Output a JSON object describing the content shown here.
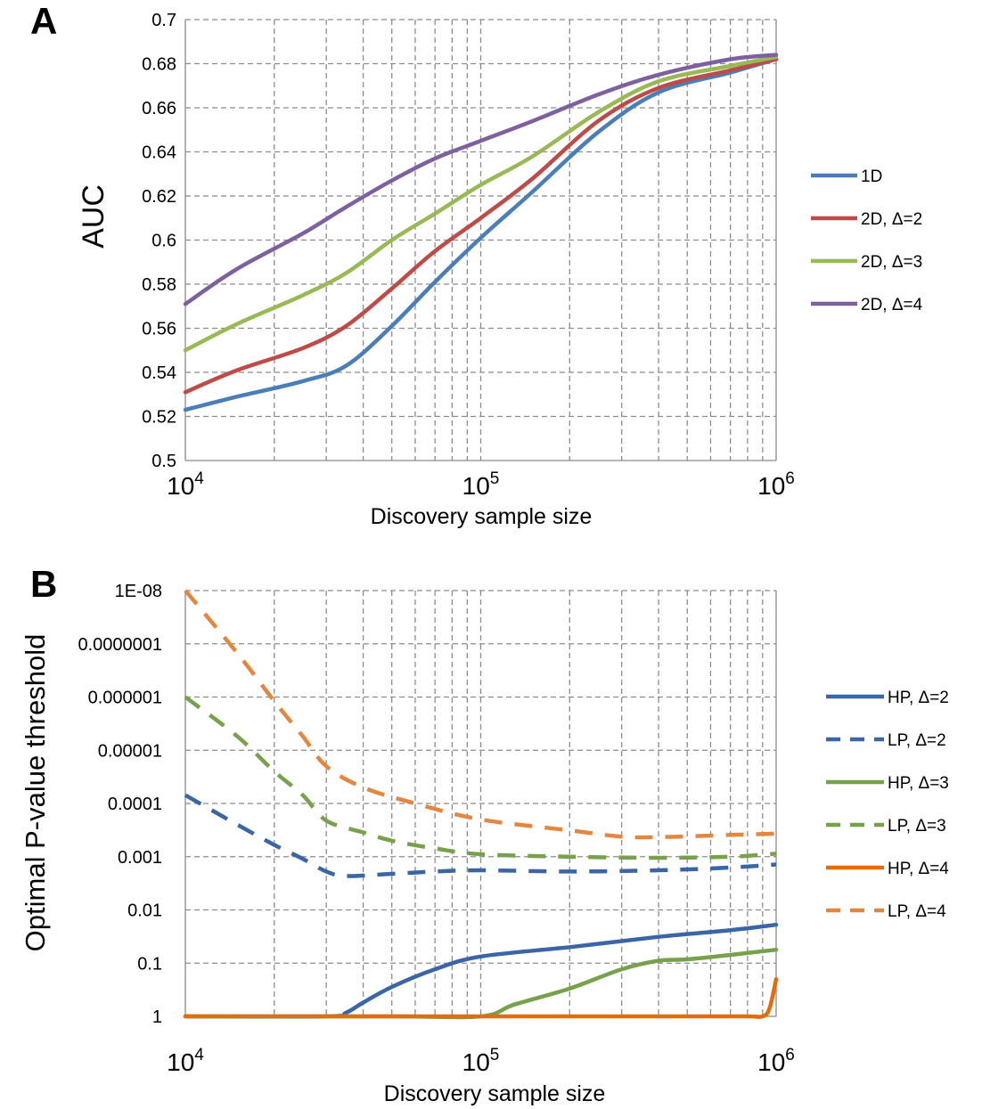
{
  "chart_data": [
    {
      "panel": "A",
      "type": "line",
      "xlabel": "Discovery sample size",
      "ylabel": "AUC",
      "xscale": "log",
      "xlim": [
        10000,
        1000000
      ],
      "ylim": [
        0.5,
        0.7
      ],
      "yticks": [
        "0.5",
        "0.52",
        "0.54",
        "0.56",
        "0.58",
        "0.6",
        "0.62",
        "0.64",
        "0.66",
        "0.68",
        "0.7"
      ],
      "xticks": [
        {
          "base": "10",
          "exp": "4"
        },
        {
          "base": "10",
          "exp": "5"
        },
        {
          "base": "10",
          "exp": "6"
        }
      ],
      "grid": true,
      "legend": "right",
      "x": [
        10000,
        15000,
        25000,
        35000,
        50000,
        70000,
        100000,
        150000,
        250000,
        400000,
        700000,
        1000000
      ],
      "series": [
        {
          "name": "1D",
          "color": "#4a7ebb",
          "dash": false,
          "values": [
            0.523,
            0.529,
            0.536,
            0.543,
            0.561,
            0.581,
            0.601,
            0.622,
            0.649,
            0.667,
            0.676,
            0.682
          ]
        },
        {
          "name": "2D, Δ=2",
          "color": "#be4b48",
          "dash": false,
          "values": [
            0.531,
            0.541,
            0.551,
            0.561,
            0.578,
            0.595,
            0.61,
            0.628,
            0.654,
            0.669,
            0.677,
            0.682
          ]
        },
        {
          "name": "2D, Δ=3",
          "color": "#98b954",
          "dash": false,
          "values": [
            0.55,
            0.562,
            0.575,
            0.585,
            0.6,
            0.612,
            0.625,
            0.638,
            0.658,
            0.672,
            0.679,
            0.683
          ]
        },
        {
          "name": "2D, Δ=4",
          "color": "#7d60a0",
          "dash": false,
          "values": [
            0.571,
            0.587,
            0.603,
            0.615,
            0.627,
            0.637,
            0.645,
            0.654,
            0.666,
            0.675,
            0.682,
            0.684
          ]
        }
      ]
    },
    {
      "panel": "B",
      "type": "line",
      "xlabel": "Discovery sample size",
      "ylabel": "Optimal P-value threshold",
      "xscale": "log",
      "yscale": "log",
      "yaxis_reversed": true,
      "xlim": [
        10000,
        1000000
      ],
      "ylim": [
        1,
        1e-08
      ],
      "yticks": [
        "1E-08",
        "0.0000001",
        "0.000001",
        "0.00001",
        "0.0001",
        "0.001",
        "0.01",
        "0.1",
        "1"
      ],
      "xticks": [
        {
          "base": "10",
          "exp": "4"
        },
        {
          "base": "10",
          "exp": "5"
        },
        {
          "base": "10",
          "exp": "6"
        }
      ],
      "grid": true,
      "legend": "right",
      "series": [
        {
          "name": "HP, Δ=2",
          "color": "#3a66a7",
          "dash": false,
          "x": [
            10000,
            30000,
            35000,
            40000,
            50000,
            70000,
            100000,
            200000,
            400000,
            700000,
            1000000
          ],
          "values": [
            1,
            1,
            0.85,
            0.55,
            0.28,
            0.13,
            0.075,
            0.05,
            0.032,
            0.024,
            0.019
          ]
        },
        {
          "name": "LP, Δ=2",
          "color": "#3a66a7",
          "dash": true,
          "x": [
            10000,
            15000,
            20000,
            25000,
            30000,
            35000,
            50000,
            70000,
            100000,
            200000,
            400000,
            700000,
            1000000
          ],
          "values": [
            7e-05,
            0.00025,
            0.0006,
            0.0011,
            0.0019,
            0.0023,
            0.0021,
            0.0019,
            0.0018,
            0.0019,
            0.0018,
            0.0016,
            0.0014
          ]
        },
        {
          "name": "HP, Δ=3",
          "color": "#77a14a",
          "dash": false,
          "x": [
            10000,
            50000,
            100000,
            130000,
            200000,
            300000,
            400000,
            500000,
            700000,
            1000000
          ],
          "values": [
            1,
            1,
            1,
            0.6,
            0.3,
            0.13,
            0.09,
            0.085,
            0.07,
            0.056
          ]
        },
        {
          "name": "LP, Δ=3",
          "color": "#77a14a",
          "dash": true,
          "x": [
            10000,
            15000,
            20000,
            25000,
            30000,
            40000,
            50000,
            70000,
            100000,
            200000,
            400000,
            700000,
            1000000
          ],
          "values": [
            1e-06,
            5.5e-06,
            2.5e-05,
            7e-05,
            0.00021,
            0.00035,
            0.0005,
            0.0007,
            0.0009,
            0.001,
            0.00105,
            0.001,
            0.00088
          ]
        },
        {
          "name": "HP, Δ=4",
          "color": "#e46c0a",
          "dash": false,
          "x": [
            10000,
            100000,
            500000,
            800000,
            900000,
            950000,
            1000000
          ],
          "values": [
            1,
            1,
            1,
            1,
            1,
            0.7,
            0.2
          ]
        },
        {
          "name": "LP, Δ=4",
          "color": "#e3863f",
          "dash": true,
          "x": [
            10000,
            15000,
            20000,
            25000,
            30000,
            40000,
            60000,
            100000,
            200000,
            300000,
            400000,
            700000,
            1000000
          ],
          "values": [
            1e-08,
            1.5e-07,
            1.2e-06,
            5.5e-06,
            2e-05,
            5e-05,
            0.0001,
            0.0002,
            0.00032,
            0.00042,
            0.00043,
            0.00039,
            0.00037
          ]
        }
      ]
    }
  ]
}
